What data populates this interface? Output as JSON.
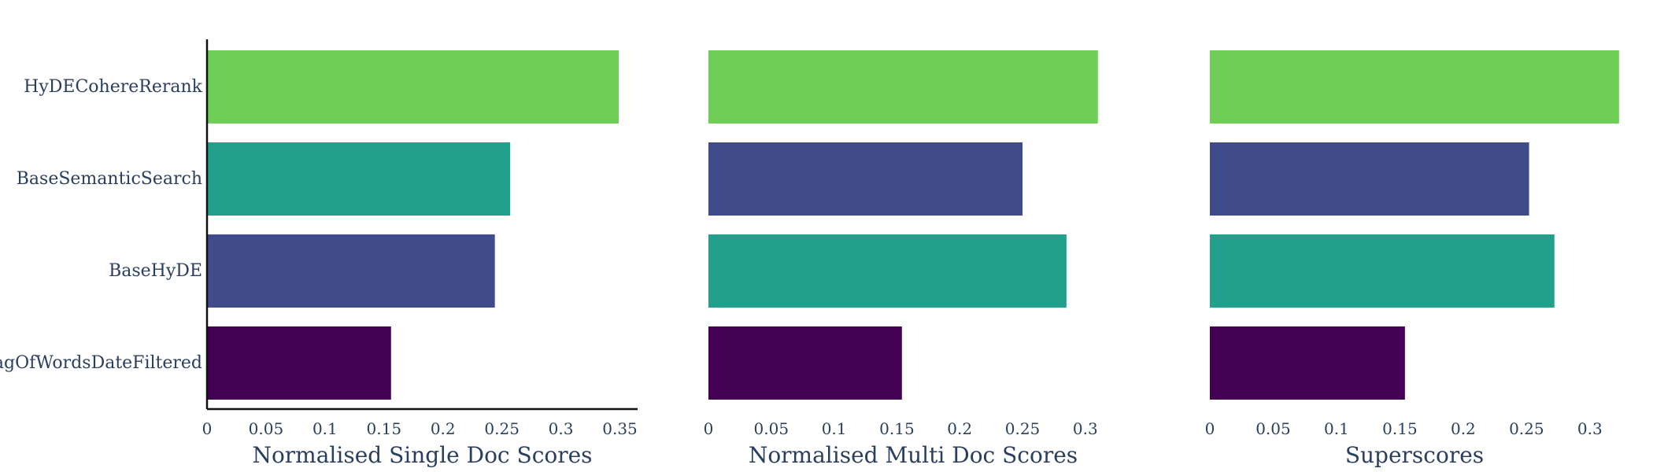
{
  "chart_data": [
    {
      "type": "bar",
      "orientation": "horizontal",
      "categories": [
        "HyDECohereRerank",
        "BaseSemanticSearch",
        "BaseHyDE",
        "BagOfWordsDateFiltered"
      ],
      "values": [
        0.349,
        0.257,
        0.244,
        0.156
      ],
      "colors": [
        "#6ece58",
        "#22a08b",
        "#3f4b8a",
        "#440154"
      ],
      "xlabel": "Normalised Single Doc Scores",
      "ylabel": "",
      "xlim": [
        0,
        0.365
      ],
      "xticks": [
        "0",
        "0.05",
        "0.1",
        "0.15",
        "0.2",
        "0.25",
        "0.3",
        "0.35"
      ],
      "show_category_labels": true,
      "show_axis_lines": true,
      "grid": false
    },
    {
      "type": "bar",
      "orientation": "horizontal",
      "categories": [
        "HyDECohereRerank",
        "BaseSemanticSearch",
        "BaseHyDE",
        "BagOfWordsDateFiltered"
      ],
      "values": [
        0.31,
        0.25,
        0.285,
        0.154
      ],
      "colors": [
        "#6ece58",
        "#3f4b8a",
        "#22a08b",
        "#440154"
      ],
      "xlabel": "Normalised Multi Doc Scores",
      "ylabel": "",
      "xlim": [
        0,
        0.3258
      ],
      "xticks": [
        "0",
        "0.05",
        "0.1",
        "0.15",
        "0.2",
        "0.25",
        "0.3"
      ],
      "show_category_labels": false,
      "show_axis_lines": false,
      "grid": false
    },
    {
      "type": "bar",
      "orientation": "horizontal",
      "categories": [
        "HyDECohereRerank",
        "BaseSemanticSearch",
        "BaseHyDE",
        "BagOfWordsDateFiltered"
      ],
      "values": [
        0.323,
        0.252,
        0.272,
        0.154
      ],
      "colors": [
        "#6ece58",
        "#3f4b8a",
        "#22a08b",
        "#440154"
      ],
      "xlabel": "Superscores",
      "ylabel": "",
      "xlim": [
        0,
        0.3231
      ],
      "xticks": [
        "0",
        "0.05",
        "0.1",
        "0.15",
        "0.2",
        "0.25",
        "0.3"
      ],
      "show_category_labels": false,
      "show_axis_lines": false,
      "grid": false
    }
  ]
}
